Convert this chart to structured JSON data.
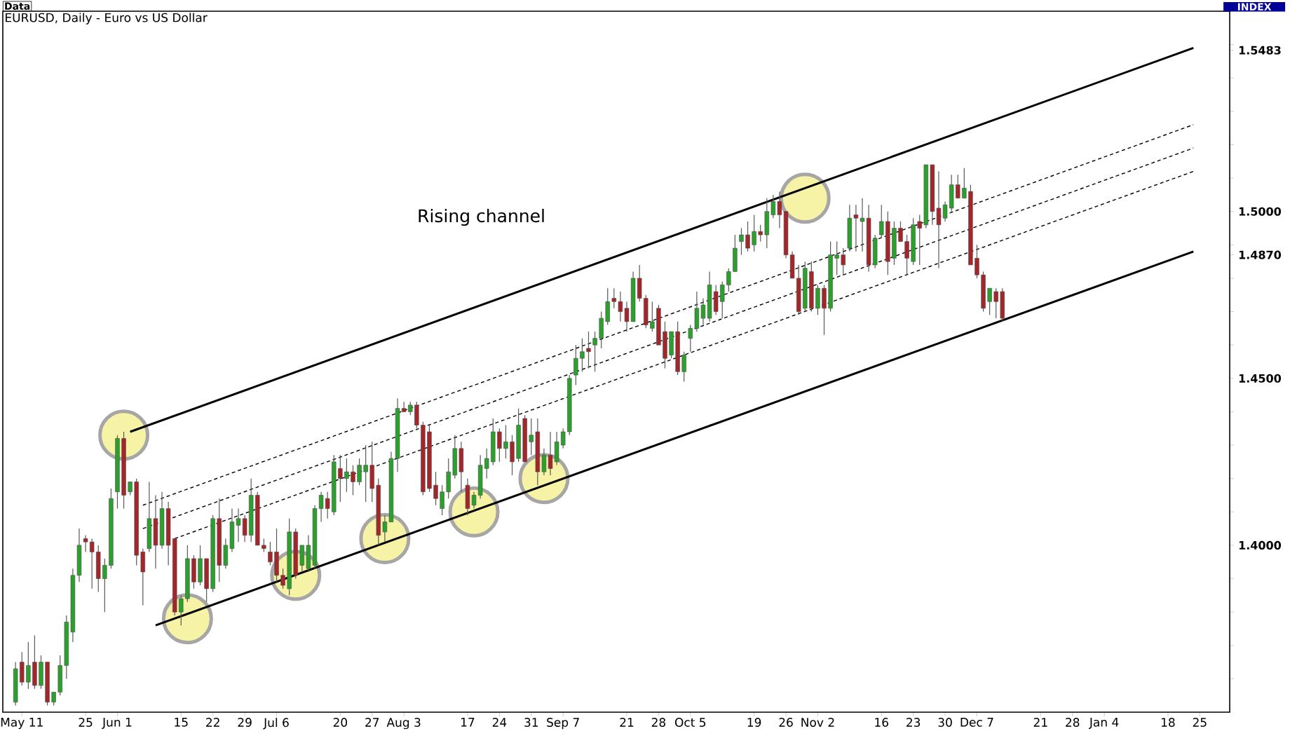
{
  "chart_data": {
    "type": "candlestick",
    "title": "EURUSD, Daily - Euro vs US Dollar",
    "annotations": [
      "Data",
      "INDEX",
      "Rising channel"
    ],
    "categories": [
      null,
      "May 11",
      null,
      null,
      null,
      null,
      null,
      null,
      null,
      null,
      null,
      "25",
      null,
      null,
      null,
      null,
      "Jun 1",
      null,
      null,
      null,
      null,
      null,
      null,
      null,
      null,
      null,
      "15",
      null,
      null,
      null,
      null,
      "22",
      null,
      null,
      null,
      null,
      "29",
      null,
      null,
      null,
      null,
      "Jul 6",
      null,
      null,
      null,
      null,
      null,
      null,
      null,
      null,
      null,
      "20",
      null,
      null,
      null,
      null,
      "27",
      null,
      null,
      null,
      null,
      "Aug 3",
      null,
      null,
      null,
      null,
      null,
      null,
      null,
      null,
      null,
      "17",
      null,
      null,
      null,
      null,
      "24",
      null,
      null,
      null,
      null,
      "31",
      null,
      null,
      null,
      null,
      "Sep 7",
      null,
      null,
      null,
      null,
      null,
      null,
      null,
      null,
      null,
      "21",
      null,
      null,
      null,
      null,
      "28",
      null,
      null,
      null,
      null,
      "Oct 5",
      null,
      null,
      null,
      null,
      null,
      null,
      null,
      null,
      null,
      "19",
      null,
      null,
      null,
      null,
      "26",
      null,
      null,
      null,
      null,
      "Nov 2",
      null,
      null,
      null,
      null,
      null,
      null,
      null,
      null,
      null,
      "16",
      null,
      null,
      null,
      null,
      "23",
      null,
      null,
      null,
      null,
      "30",
      null,
      null,
      null,
      null,
      "Dec 7",
      null,
      null,
      null,
      null,
      null,
      null,
      null,
      null,
      null,
      "21",
      null,
      null,
      null,
      null,
      "28",
      null,
      null,
      null,
      null,
      "Jan 4",
      null,
      null,
      null,
      null,
      null,
      null,
      null,
      null,
      null,
      "18",
      null,
      null,
      null,
      null,
      "25",
      null,
      null,
      null,
      null
    ],
    "ohlc": [
      [
        1.353,
        1.365,
        1.352,
        1.363
      ],
      [
        1.365,
        1.368,
        1.358,
        1.359
      ],
      [
        1.359,
        1.371,
        1.357,
        1.364
      ],
      [
        1.365,
        1.373,
        1.357,
        1.358
      ],
      [
        1.358,
        1.367,
        1.357,
        1.365
      ],
      [
        1.365,
        1.365,
        1.352,
        1.353
      ],
      [
        1.353,
        1.356,
        1.352,
        1.356
      ],
      [
        1.356,
        1.367,
        1.355,
        1.364
      ],
      [
        1.364,
        1.379,
        1.36,
        1.377
      ],
      [
        1.374,
        1.393,
        1.371,
        1.391
      ],
      [
        1.391,
        1.405,
        1.389,
        1.4
      ],
      [
        1.402,
        1.403,
        1.398,
        1.401
      ],
      [
        1.401,
        1.402,
        1.387,
        1.398
      ],
      [
        1.398,
        1.4,
        1.386,
        1.39
      ],
      [
        1.39,
        1.396,
        1.38,
        1.394
      ],
      [
        1.394,
        1.417,
        1.393,
        1.414
      ],
      [
        1.416,
        1.433,
        1.411,
        1.432
      ],
      [
        1.432,
        1.434,
        1.411,
        1.415
      ],
      [
        1.416,
        1.419,
        1.415,
        1.419
      ],
      [
        1.419,
        1.42,
        1.394,
        1.397
      ],
      [
        1.398,
        1.399,
        1.382,
        1.392
      ],
      [
        1.399,
        1.419,
        1.398,
        1.408
      ],
      [
        1.408,
        1.415,
        1.393,
        1.4
      ],
      [
        1.4,
        1.416,
        1.399,
        1.411
      ],
      [
        1.411,
        1.413,
        1.394,
        1.4
      ],
      [
        1.402,
        1.402,
        1.379,
        1.38
      ],
      [
        1.38,
        1.385,
        1.376,
        1.384
      ],
      [
        1.384,
        1.4,
        1.383,
        1.396
      ],
      [
        1.396,
        1.397,
        1.387,
        1.389
      ],
      [
        1.389,
        1.4,
        1.388,
        1.396
      ],
      [
        1.396,
        1.396,
        1.383,
        1.387
      ],
      [
        1.387,
        1.409,
        1.386,
        1.408
      ],
      [
        1.408,
        1.414,
        1.389,
        1.394
      ],
      [
        1.394,
        1.402,
        1.393,
        1.4
      ],
      [
        1.399,
        1.411,
        1.398,
        1.407
      ],
      [
        1.406,
        1.411,
        1.401,
        1.408
      ],
      [
        1.408,
        1.409,
        1.401,
        1.403
      ],
      [
        1.403,
        1.42,
        1.401,
        1.415
      ],
      [
        1.415,
        1.416,
        1.4,
        1.4
      ],
      [
        1.4,
        1.402,
        1.398,
        1.399
      ],
      [
        1.398,
        1.401,
        1.394,
        1.395
      ],
      [
        1.398,
        1.405,
        1.389,
        1.391
      ],
      [
        1.391,
        1.393,
        1.387,
        1.388
      ],
      [
        1.387,
        1.408,
        1.385,
        1.404
      ],
      [
        1.404,
        1.405,
        1.39,
        1.391
      ],
      [
        1.394,
        1.4,
        1.392,
        1.4
      ],
      [
        1.393,
        1.403,
        1.392,
        1.4
      ],
      [
        1.394,
        1.412,
        1.393,
        1.411
      ],
      [
        1.411,
        1.416,
        1.407,
        1.415
      ],
      [
        1.414,
        1.416,
        1.408,
        1.411
      ],
      [
        1.41,
        1.427,
        1.409,
        1.425
      ],
      [
        1.423,
        1.427,
        1.413,
        1.42
      ],
      [
        1.42,
        1.426,
        1.416,
        1.422
      ],
      [
        1.422,
        1.424,
        1.415,
        1.419
      ],
      [
        1.419,
        1.426,
        1.418,
        1.424
      ],
      [
        1.422,
        1.43,
        1.413,
        1.424
      ],
      [
        1.424,
        1.431,
        1.413,
        1.417
      ],
      [
        1.418,
        1.42,
        1.4,
        1.403
      ],
      [
        1.404,
        1.409,
        1.401,
        1.407
      ],
      [
        1.407,
        1.428,
        1.407,
        1.426
      ],
      [
        1.426,
        1.444,
        1.422,
        1.441
      ],
      [
        1.441,
        1.443,
        1.44,
        1.44
      ],
      [
        1.44,
        1.443,
        1.439,
        1.442
      ],
      [
        1.442,
        1.443,
        1.435,
        1.436
      ],
      [
        1.436,
        1.437,
        1.415,
        1.416
      ],
      [
        1.434,
        1.436,
        1.416,
        1.417
      ],
      [
        1.418,
        1.422,
        1.412,
        1.414
      ],
      [
        1.411,
        1.418,
        1.409,
        1.416
      ],
      [
        1.416,
        1.426,
        1.414,
        1.422
      ],
      [
        1.421,
        1.433,
        1.42,
        1.429
      ],
      [
        1.429,
        1.431,
        1.416,
        1.422
      ],
      [
        1.418,
        1.42,
        1.409,
        1.411
      ],
      [
        1.412,
        1.416,
        1.411,
        1.415
      ],
      [
        1.415,
        1.427,
        1.414,
        1.424
      ],
      [
        1.423,
        1.429,
        1.42,
        1.426
      ],
      [
        1.425,
        1.438,
        1.424,
        1.434
      ],
      [
        1.434,
        1.435,
        1.425,
        1.429
      ],
      [
        1.429,
        1.436,
        1.426,
        1.431
      ],
      [
        1.431,
        1.433,
        1.421,
        1.425
      ],
      [
        1.426,
        1.441,
        1.425,
        1.436
      ],
      [
        1.438,
        1.439,
        1.425,
        1.425
      ],
      [
        1.431,
        1.438,
        1.427,
        1.433
      ],
      [
        1.434,
        1.438,
        1.418,
        1.422
      ],
      [
        1.422,
        1.429,
        1.421,
        1.427
      ],
      [
        1.427,
        1.434,
        1.421,
        1.423
      ],
      [
        1.425,
        1.434,
        1.424,
        1.431
      ],
      [
        1.43,
        1.435,
        1.429,
        1.434
      ],
      [
        1.434,
        1.451,
        1.433,
        1.45
      ],
      [
        1.451,
        1.46,
        1.448,
        1.456
      ],
      [
        1.456,
        1.462,
        1.452,
        1.458
      ],
      [
        1.459,
        1.464,
        1.453,
        1.458
      ],
      [
        1.46,
        1.464,
        1.452,
        1.462
      ],
      [
        1.462,
        1.47,
        1.459,
        1.468
      ],
      [
        1.467,
        1.477,
        1.466,
        1.473
      ],
      [
        1.474,
        1.477,
        1.471,
        1.473
      ],
      [
        1.473,
        1.476,
        1.467,
        1.47
      ],
      [
        1.471,
        1.473,
        1.464,
        1.467
      ],
      [
        1.467,
        1.482,
        1.467,
        1.48
      ],
      [
        1.48,
        1.484,
        1.473,
        1.474
      ],
      [
        1.474,
        1.475,
        1.465,
        1.466
      ],
      [
        1.465,
        1.473,
        1.464,
        1.467
      ],
      [
        1.471,
        1.472,
        1.46,
        1.46
      ],
      [
        1.464,
        1.467,
        1.453,
        1.456
      ],
      [
        1.457,
        1.464,
        1.456,
        1.464
      ],
      [
        1.464,
        1.467,
        1.451,
        1.452
      ],
      [
        1.452,
        1.458,
        1.449,
        1.457
      ],
      [
        1.462,
        1.466,
        1.458,
        1.465
      ],
      [
        1.465,
        1.476,
        1.464,
        1.471
      ],
      [
        1.468,
        1.474,
        1.466,
        1.472
      ],
      [
        1.468,
        1.482,
        1.467,
        1.478
      ],
      [
        1.476,
        1.478,
        1.469,
        1.47
      ],
      [
        1.473,
        1.479,
        1.468,
        1.478
      ],
      [
        1.478,
        1.483,
        1.476,
        1.482
      ],
      [
        1.482,
        1.493,
        1.482,
        1.489
      ],
      [
        1.491,
        1.495,
        1.487,
        1.493
      ],
      [
        1.493,
        1.497,
        1.488,
        1.489
      ],
      [
        1.49,
        1.499,
        1.488,
        1.494
      ],
      [
        1.494,
        1.496,
        1.491,
        1.493
      ],
      [
        1.493,
        1.504,
        1.489,
        1.5
      ],
      [
        1.499,
        1.505,
        1.498,
        1.503
      ],
      [
        1.503,
        1.506,
        1.495,
        1.499
      ],
      [
        1.5,
        1.5,
        1.486,
        1.487
      ],
      [
        1.487,
        1.488,
        1.48,
        1.48
      ],
      [
        1.48,
        1.484,
        1.469,
        1.47
      ],
      [
        1.471,
        1.485,
        1.47,
        1.483
      ],
      [
        1.482,
        1.485,
        1.47,
        1.471
      ],
      [
        1.471,
        1.478,
        1.469,
        1.477
      ],
      [
        1.477,
        1.478,
        1.463,
        1.471
      ],
      [
        1.471,
        1.491,
        1.47,
        1.487
      ],
      [
        1.486,
        1.491,
        1.481,
        1.487
      ],
      [
        1.487,
        1.489,
        1.481,
        1.484
      ],
      [
        1.489,
        1.502,
        1.488,
        1.498
      ],
      [
        1.499,
        1.502,
        1.488,
        1.498
      ],
      [
        1.497,
        1.504,
        1.488,
        1.498
      ],
      [
        1.498,
        1.502,
        1.482,
        1.484
      ],
      [
        1.484,
        1.493,
        1.483,
        1.492
      ],
      [
        1.493,
        1.502,
        1.492,
        1.497
      ],
      [
        1.497,
        1.5,
        1.481,
        1.485
      ],
      [
        1.486,
        1.497,
        1.484,
        1.495
      ],
      [
        1.495,
        1.497,
        1.491,
        1.491
      ],
      [
        1.491,
        1.493,
        1.481,
        1.486
      ],
      [
        1.485,
        1.498,
        1.484,
        1.496
      ],
      [
        1.497,
        1.499,
        1.484,
        1.495
      ],
      [
        1.496,
        1.514,
        1.495,
        1.514
      ],
      [
        1.514,
        1.514,
        1.496,
        1.5
      ],
      [
        1.501,
        1.512,
        1.483,
        1.496
      ],
      [
        1.498,
        1.503,
        1.497,
        1.502
      ],
      [
        1.501,
        1.511,
        1.5,
        1.508
      ],
      [
        1.508,
        1.511,
        1.504,
        1.504
      ],
      [
        1.504,
        1.513,
        1.504,
        1.507
      ],
      [
        1.506,
        1.508,
        1.484,
        1.484
      ],
      [
        1.486,
        1.49,
        1.48,
        1.481
      ],
      [
        1.481,
        1.482,
        1.47,
        1.471
      ],
      [
        1.473,
        1.477,
        1.469,
        1.477
      ],
      [
        1.476,
        1.477,
        1.468,
        1.473
      ],
      [
        1.476,
        1.477,
        1.467,
        1.468
      ],
      null,
      null,
      null,
      null,
      null,
      null,
      null,
      null,
      null,
      null,
      null,
      null,
      null,
      null,
      null,
      null,
      null,
      null,
      null,
      null,
      null,
      null,
      null,
      null,
      null,
      null,
      null,
      null,
      null,
      null,
      null,
      null,
      null,
      null,
      null
    ],
    "colors": [
      "#2ca02c",
      "#a3262a",
      "#2ca02c",
      "#a3262a",
      "#2ca02c",
      "#a3262a",
      "#2ca02c",
      "#2ca02c",
      "#2ca02c",
      "#2ca02c",
      "#2ca02c",
      "#a3262a",
      "#a3262a",
      "#a3262a",
      "#2ca02c",
      "#2ca02c",
      "#2ca02c",
      "#a3262a",
      "#2ca02c",
      "#a3262a",
      "#a3262a",
      "#2ca02c",
      "#a3262a",
      "#2ca02c",
      "#a3262a",
      "#a3262a",
      "#2ca02c",
      "#2ca02c",
      "#a3262a",
      "#2ca02c",
      "#a3262a",
      "#2ca02c",
      "#a3262a",
      "#2ca02c",
      "#2ca02c",
      "#2ca02c",
      "#a3262a",
      "#2ca02c",
      "#a3262a",
      "#a3262a",
      "#a3262a",
      "#a3262a",
      "#a3262a",
      "#2ca02c",
      "#a3262a",
      "#2ca02c",
      "#2ca02c",
      "#2ca02c",
      "#2ca02c",
      "#a3262a",
      "#2ca02c",
      "#a3262a",
      "#2ca02c",
      "#a3262a",
      "#2ca02c",
      "#2ca02c",
      "#a3262a",
      "#a3262a",
      "#2ca02c",
      "#2ca02c",
      "#2ca02c",
      "#a3262a",
      "#2ca02c",
      "#a3262a",
      "#a3262a",
      "#a3262a",
      "#a3262a",
      "#2ca02c",
      "#2ca02c",
      "#2ca02c",
      "#a3262a",
      "#a3262a",
      "#2ca02c",
      "#2ca02c",
      "#2ca02c",
      "#2ca02c",
      "#a3262a",
      "#2ca02c",
      "#a3262a",
      "#2ca02c",
      "#a3262a",
      "#2ca02c",
      "#a3262a",
      "#2ca02c",
      "#a3262a",
      "#2ca02c",
      "#2ca02c",
      "#2ca02c",
      "#2ca02c",
      "#2ca02c",
      "#a3262a",
      "#2ca02c",
      "#2ca02c",
      "#2ca02c",
      "#a3262a",
      "#a3262a",
      "#a3262a",
      "#2ca02c",
      "#a3262a",
      "#a3262a",
      "#2ca02c",
      "#a3262a",
      "#a3262a",
      "#2ca02c",
      "#a3262a",
      "#2ca02c",
      "#2ca02c",
      "#2ca02c",
      "#2ca02c",
      "#2ca02c",
      "#a3262a",
      "#2ca02c",
      "#2ca02c",
      "#2ca02c",
      "#2ca02c",
      "#a3262a",
      "#2ca02c",
      "#a3262a",
      "#2ca02c",
      "#2ca02c",
      "#a3262a",
      "#a3262a",
      "#a3262a",
      "#a3262a",
      "#2ca02c",
      "#a3262a",
      "#2ca02c",
      "#a3262a",
      "#2ca02c",
      "#2ca02c",
      "#a3262a",
      "#2ca02c",
      "#a3262a",
      "#2ca02c",
      "#a3262a",
      "#2ca02c",
      "#2ca02c",
      "#a3262a",
      "#2ca02c",
      "#a3262a",
      "#a3262a",
      "#2ca02c",
      "#a3262a",
      "#2ca02c",
      "#a3262a",
      "#a3262a",
      "#2ca02c",
      "#2ca02c",
      "#a3262a",
      "#2ca02c",
      "#a3262a",
      "#a3262a",
      "#a3262a",
      "#2ca02c",
      "#a3262a",
      "#a3262a",
      null,
      null,
      null,
      null,
      null,
      null,
      null,
      null,
      null,
      null,
      null,
      null,
      null,
      null,
      null,
      null,
      null,
      null,
      null,
      null,
      null,
      null,
      null,
      null,
      null,
      null,
      null,
      null,
      null,
      null,
      null,
      null,
      null,
      null,
      null
    ],
    "series": [
      {
        "type": "line",
        "color": "#000000",
        "line_style": "solid",
        "values": [
          null,
          null,
          null,
          null,
          null,
          null,
          null,
          null,
          null,
          null,
          null,
          null,
          null,
          null,
          null,
          null,
          null,
          null,
          1.434,
          null,
          null,
          null,
          null,
          null,
          null,
          null,
          null,
          null,
          null,
          null,
          null,
          null,
          null,
          null,
          null,
          null,
          null,
          null,
          null,
          null,
          null,
          null,
          null,
          null,
          null,
          null,
          null,
          null,
          null,
          null,
          null,
          null,
          null,
          null,
          null,
          null,
          null,
          null,
          null,
          null,
          null,
          null,
          null,
          null,
          null,
          null,
          null,
          null,
          null,
          null,
          null,
          null,
          null,
          null,
          null,
          null,
          null,
          null,
          null,
          null,
          null,
          null,
          null,
          null,
          null,
          null,
          null,
          null,
          null,
          null,
          null,
          null,
          null,
          null,
          null,
          null,
          null,
          null,
          null,
          null,
          null,
          null,
          null,
          null,
          null,
          null,
          null,
          null,
          null,
          null,
          null,
          null,
          null,
          null,
          null,
          null,
          null,
          null,
          null,
          null,
          null,
          null,
          null,
          null,
          null,
          null,
          null,
          null,
          null,
          null,
          null,
          null,
          null,
          null,
          null,
          null,
          null,
          null,
          null,
          null,
          null,
          null,
          null,
          null,
          null,
          null,
          null,
          null,
          null,
          null,
          null,
          null,
          null,
          null,
          null,
          null,
          null,
          null,
          null,
          null,
          null,
          null,
          null,
          null,
          null,
          null,
          null,
          null,
          null,
          null,
          null,
          null,
          null,
          null,
          null,
          null,
          null,
          null,
          null,
          null,
          null,
          null,
          null,
          null,
          null,
          1.549,
          null,
          null,
          null,
          null,
          null
        ]
      },
      {
        "type": "line",
        "color": "#000000",
        "line_style": "solid",
        "values": [
          null,
          null,
          null,
          null,
          null,
          null,
          null,
          null,
          null,
          null,
          null,
          null,
          null,
          null,
          null,
          null,
          null,
          null,
          null,
          null,
          null,
          null,
          1.376,
          null,
          null,
          null,
          null,
          null,
          null,
          null,
          null,
          null,
          null,
          null,
          null,
          null,
          null,
          null,
          null,
          null,
          null,
          null,
          null,
          null,
          null,
          null,
          null,
          null,
          null,
          null,
          null,
          null,
          null,
          null,
          null,
          null,
          null,
          null,
          null,
          null,
          null,
          null,
          null,
          null,
          null,
          null,
          null,
          null,
          null,
          null,
          null,
          null,
          null,
          null,
          null,
          null,
          null,
          null,
          null,
          null,
          null,
          null,
          null,
          null,
          null,
          null,
          null,
          null,
          null,
          null,
          null,
          null,
          null,
          null,
          null,
          null,
          null,
          null,
          null,
          null,
          null,
          null,
          null,
          null,
          null,
          null,
          null,
          null,
          null,
          null,
          null,
          null,
          null,
          null,
          null,
          null,
          null,
          null,
          null,
          null,
          null,
          null,
          null,
          null,
          null,
          null,
          null,
          null,
          null,
          null,
          null,
          null,
          null,
          null,
          null,
          null,
          null,
          null,
          null,
          null,
          null,
          null,
          null,
          null,
          null,
          null,
          null,
          null,
          null,
          null,
          null,
          null,
          null,
          null,
          null,
          null,
          null,
          null,
          null,
          null,
          null,
          null,
          null,
          null,
          null,
          null,
          null,
          null,
          null,
          null,
          null,
          null,
          null,
          null,
          null,
          null,
          null,
          null,
          null,
          null,
          null,
          null,
          null,
          null,
          null,
          1.488,
          null,
          null,
          null,
          null,
          null
        ]
      },
      {
        "type": "line",
        "color": "#000000",
        "line_style": "dashed",
        "values": [
          null,
          null,
          null,
          null,
          null,
          null,
          null,
          null,
          null,
          null,
          null,
          null,
          null,
          null,
          null,
          null,
          null,
          null,
          null,
          null,
          1.412,
          null,
          null,
          null,
          null,
          null,
          null,
          null,
          null,
          null,
          null,
          null,
          null,
          null,
          null,
          null,
          null,
          null,
          null,
          null,
          null,
          null,
          null,
          null,
          null,
          null,
          null,
          null,
          null,
          null,
          null,
          null,
          null,
          null,
          null,
          null,
          null,
          null,
          null,
          null,
          null,
          null,
          null,
          null,
          null,
          null,
          null,
          null,
          null,
          null,
          null,
          null,
          null,
          null,
          null,
          null,
          null,
          null,
          null,
          null,
          null,
          null,
          null,
          null,
          null,
          null,
          null,
          null,
          null,
          null,
          null,
          null,
          null,
          null,
          null,
          null,
          null,
          null,
          null,
          null,
          null,
          null,
          null,
          null,
          null,
          null,
          null,
          null,
          null,
          null,
          null,
          null,
          null,
          null,
          null,
          null,
          null,
          null,
          null,
          null,
          null,
          null,
          null,
          null,
          null,
          null,
          null,
          null,
          null,
          null,
          null,
          null,
          null,
          null,
          null,
          null,
          null,
          null,
          null,
          null,
          null,
          null,
          null,
          null,
          null,
          null,
          null,
          null,
          null,
          null,
          null,
          null,
          null,
          null,
          null,
          null,
          null,
          null,
          null,
          null,
          null,
          null,
          null,
          null,
          null,
          null,
          null,
          null,
          null,
          null,
          null,
          null,
          null,
          null,
          null,
          null,
          null,
          null,
          null,
          null,
          null,
          null,
          null,
          null,
          null,
          1.526,
          null,
          null,
          null,
          null,
          null
        ]
      },
      {
        "type": "line",
        "color": "#000000",
        "line_style": "dashed",
        "values": [
          null,
          null,
          null,
          null,
          null,
          null,
          null,
          null,
          null,
          null,
          null,
          null,
          null,
          null,
          null,
          null,
          null,
          null,
          null,
          null,
          1.405,
          null,
          null,
          null,
          null,
          null,
          null,
          null,
          null,
          null,
          null,
          null,
          null,
          null,
          null,
          null,
          null,
          null,
          null,
          null,
          null,
          null,
          null,
          null,
          null,
          null,
          null,
          null,
          null,
          null,
          null,
          null,
          null,
          null,
          null,
          null,
          null,
          null,
          null,
          null,
          null,
          null,
          null,
          null,
          null,
          null,
          null,
          null,
          null,
          null,
          null,
          null,
          null,
          null,
          null,
          null,
          null,
          null,
          null,
          null,
          null,
          null,
          null,
          null,
          null,
          null,
          null,
          null,
          null,
          null,
          null,
          null,
          null,
          null,
          null,
          null,
          null,
          null,
          null,
          null,
          null,
          null,
          null,
          null,
          null,
          null,
          null,
          null,
          null,
          null,
          null,
          null,
          null,
          null,
          null,
          null,
          null,
          null,
          null,
          null,
          null,
          null,
          null,
          null,
          null,
          null,
          null,
          null,
          null,
          null,
          null,
          null,
          null,
          null,
          null,
          null,
          null,
          null,
          null,
          null,
          null,
          null,
          null,
          null,
          null,
          null,
          null,
          null,
          null,
          null,
          null,
          null,
          null,
          null,
          null,
          null,
          null,
          null,
          null,
          null,
          null,
          null,
          null,
          null,
          null,
          null,
          null,
          null,
          null,
          null,
          null,
          null,
          null,
          null,
          null,
          null,
          null,
          null,
          null,
          null,
          null,
          null,
          null,
          null,
          null,
          1.519,
          null,
          null,
          null,
          null,
          null
        ]
      },
      {
        "type": "line",
        "color": "#000000",
        "line_style": "dashed",
        "values": [
          null,
          null,
          null,
          null,
          null,
          null,
          null,
          null,
          null,
          null,
          null,
          null,
          null,
          null,
          null,
          null,
          null,
          null,
          null,
          null,
          null,
          null,
          null,
          null,
          null,
          1.402,
          null,
          null,
          null,
          null,
          null,
          null,
          null,
          null,
          null,
          null,
          null,
          null,
          null,
          null,
          null,
          null,
          null,
          null,
          null,
          null,
          null,
          null,
          null,
          null,
          null,
          null,
          null,
          null,
          null,
          null,
          null,
          null,
          null,
          null,
          null,
          null,
          null,
          null,
          null,
          null,
          null,
          null,
          null,
          null,
          null,
          null,
          null,
          null,
          null,
          null,
          null,
          null,
          null,
          null,
          null,
          null,
          null,
          null,
          null,
          null,
          null,
          null,
          null,
          null,
          null,
          null,
          null,
          null,
          null,
          null,
          null,
          null,
          null,
          null,
          null,
          null,
          null,
          null,
          null,
          null,
          null,
          null,
          null,
          null,
          null,
          null,
          null,
          null,
          null,
          null,
          null,
          null,
          null,
          null,
          null,
          null,
          null,
          null,
          null,
          null,
          null,
          null,
          null,
          null,
          null,
          null,
          null,
          null,
          null,
          null,
          null,
          null,
          null,
          null,
          null,
          null,
          null,
          null,
          null,
          null,
          null,
          null,
          null,
          null,
          null,
          null,
          null,
          null,
          null,
          null,
          null,
          null,
          null,
          null,
          null,
          null,
          null,
          null,
          null,
          null,
          null,
          null,
          null,
          null,
          null,
          null,
          null,
          null,
          null,
          null,
          null,
          null,
          null,
          null,
          null,
          null,
          null,
          null,
          null,
          1.512,
          null,
          null,
          null,
          null,
          null
        ]
      },
      {
        "type": "scatter",
        "color": "#f6f2a6",
        "marker": "circle",
        "values": [
          null,
          null,
          null,
          null,
          null,
          null,
          null,
          null,
          null,
          null,
          null,
          null,
          null,
          null,
          null,
          null,
          null,
          1.433,
          null,
          null,
          null,
          null,
          null,
          null,
          null,
          null,
          null,
          1.378,
          null,
          null,
          null,
          null,
          null,
          null,
          null,
          null,
          null,
          null,
          null,
          null,
          null,
          null,
          null,
          null,
          1.391,
          null,
          null,
          null,
          null,
          null,
          null,
          null,
          null,
          null,
          null,
          null,
          null,
          null,
          1.402,
          null,
          null,
          null,
          null,
          null,
          null,
          null,
          null,
          null,
          null,
          null,
          null,
          null,
          1.41,
          null,
          null,
          null,
          null,
          null,
          null,
          null,
          null,
          null,
          null,
          1.42,
          null,
          null,
          null,
          null,
          null,
          null,
          null,
          null,
          null,
          null,
          null,
          null,
          null,
          null,
          null,
          null,
          null,
          null,
          null,
          null,
          null,
          null,
          null,
          null,
          null,
          null,
          null,
          null,
          null,
          null,
          null,
          null,
          null,
          null,
          null,
          null,
          null,
          null,
          null,
          null,
          1.504,
          null,
          null,
          null,
          null,
          null,
          null,
          null,
          null,
          null,
          null,
          null,
          null,
          null,
          null,
          null,
          null,
          null,
          null,
          null,
          null,
          null,
          null,
          null,
          null,
          null,
          null,
          null,
          null,
          null,
          null,
          null,
          null,
          null,
          null,
          null,
          null,
          null,
          null,
          null,
          null,
          null,
          null,
          null,
          null,
          null,
          null,
          null,
          null,
          null,
          null,
          null,
          null,
          null,
          null,
          null,
          null,
          null,
          null,
          null,
          null,
          null,
          null,
          null,
          null,
          null,
          null
        ]
      }
    ],
    "ylim": [
      1.35,
      1.56
    ],
    "yticks": [
      {
        "value": 1.36,
        "label": null
      },
      {
        "value": 1.37,
        "label": null
      },
      {
        "value": 1.38,
        "label": null
      },
      {
        "value": 1.39,
        "label": null
      },
      {
        "value": 1.4,
        "label": "1.4000"
      },
      {
        "value": 1.41,
        "label": null
      },
      {
        "value": 1.42,
        "label": null
      },
      {
        "value": 1.43,
        "label": null
      },
      {
        "value": 1.44,
        "label": null
      },
      {
        "value": 1.45,
        "label": "1.4500"
      },
      {
        "value": 1.46,
        "label": null
      },
      {
        "value": 1.47,
        "label": null
      },
      {
        "value": 1.48,
        "label": null
      },
      {
        "value": 1.487,
        "label": "1.4870"
      },
      {
        "value": 1.49,
        "label": null
      },
      {
        "value": 1.5,
        "label": "1.5000"
      },
      {
        "value": 1.51,
        "label": null
      },
      {
        "value": 1.52,
        "label": null
      },
      {
        "value": 1.53,
        "label": null
      },
      {
        "value": 1.54,
        "label": null
      },
      {
        "value": 1.5483,
        "label": "1.5483"
      },
      {
        "value": 1.55,
        "label": null
      }
    ]
  }
}
